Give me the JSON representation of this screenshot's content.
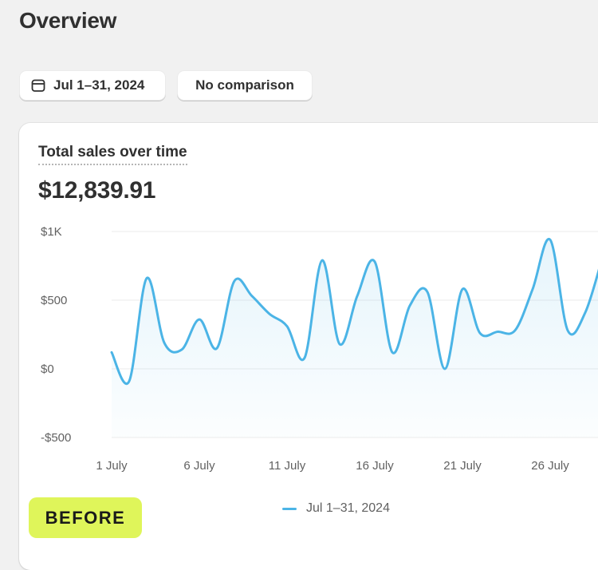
{
  "header": {
    "title": "Overview"
  },
  "filters": {
    "date_range_label": "Jul 1–31, 2024",
    "comparison_label": "No comparison"
  },
  "card": {
    "metric_label": "Total sales over time",
    "metric_value": "$12,839.91"
  },
  "badge": {
    "label": "BEFORE"
  },
  "colors": {
    "series": "#4bb4e6",
    "badge": "#dff55a"
  },
  "chart_data": {
    "type": "line",
    "title": "",
    "xlabel": "",
    "ylabel": "",
    "ylim": [
      -500,
      1000
    ],
    "y_ticks": [
      1000,
      500,
      0,
      -500
    ],
    "y_tick_labels": [
      "$1K",
      "$500",
      "$0",
      "-$500"
    ],
    "x_tick_labels": [
      "1 July",
      "6 July",
      "11 July",
      "16 July",
      "21 July",
      "26 July"
    ],
    "x_tick_days": [
      1,
      6,
      11,
      16,
      21,
      26
    ],
    "grid": true,
    "legend_position": "bottom-center",
    "series": [
      {
        "name": "Jul 1–31, 2024",
        "color": "#4bb4e6",
        "x": [
          1,
          2,
          3,
          4,
          5,
          6,
          7,
          8,
          9,
          10,
          11,
          12,
          13,
          14,
          15,
          16,
          17,
          18,
          19,
          20,
          21,
          22,
          23,
          24,
          25,
          26,
          27,
          28,
          29
        ],
        "values": [
          120,
          -90,
          660,
          190,
          140,
          360,
          150,
          640,
          530,
          400,
          310,
          80,
          790,
          180,
          530,
          780,
          120,
          460,
          560,
          0,
          580,
          260,
          270,
          280,
          580,
          940,
          280,
          410,
          820
        ]
      }
    ]
  }
}
